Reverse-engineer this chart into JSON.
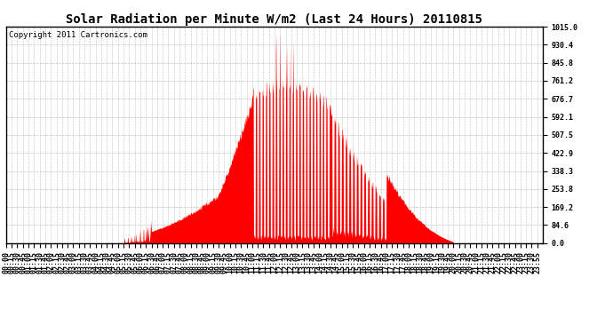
{
  "title": "Solar Radiation per Minute W/m2 (Last 24 Hours) 20110815",
  "copyright_text": "Copyright 2011 Cartronics.com",
  "yticks": [
    0.0,
    84.6,
    169.2,
    253.8,
    338.3,
    422.9,
    507.5,
    592.1,
    676.7,
    761.2,
    845.8,
    930.4,
    1015.0
  ],
  "ymax": 1015.0,
  "ymin": 0.0,
  "background_color": "#ffffff",
  "fill_color": "#ff0000",
  "line_color": "#ff0000",
  "grid_color": "#bbbbbb",
  "dashed_line_color": "#ff0000",
  "title_fontsize": 10,
  "copyright_fontsize": 6.5,
  "tick_fontsize": 6,
  "total_minutes": 1440,
  "xtick_labels": [
    "00:00",
    "00:15",
    "00:30",
    "00:45",
    "01:00",
    "01:15",
    "01:30",
    "01:45",
    "02:00",
    "02:15",
    "02:30",
    "02:45",
    "03:00",
    "03:15",
    "03:30",
    "03:45",
    "04:00",
    "04:15",
    "04:30",
    "04:45",
    "05:00",
    "05:15",
    "05:30",
    "05:45",
    "06:00",
    "06:15",
    "06:30",
    "06:45",
    "07:00",
    "07:15",
    "07:30",
    "07:45",
    "08:00",
    "08:15",
    "08:30",
    "08:45",
    "09:00",
    "09:15",
    "09:30",
    "09:45",
    "10:00",
    "10:15",
    "10:30",
    "10:45",
    "11:00",
    "11:15",
    "11:30",
    "11:45",
    "12:00",
    "12:15",
    "12:30",
    "12:45",
    "13:00",
    "13:15",
    "13:30",
    "13:45",
    "14:00",
    "14:15",
    "14:30",
    "14:45",
    "15:00",
    "15:15",
    "15:30",
    "15:45",
    "16:00",
    "16:15",
    "16:30",
    "16:45",
    "17:00",
    "17:15",
    "17:30",
    "17:45",
    "18:00",
    "18:15",
    "18:30",
    "18:45",
    "19:00",
    "19:15",
    "19:30",
    "19:45",
    "20:00",
    "20:15",
    "20:30",
    "20:45",
    "21:00",
    "21:15",
    "21:30",
    "21:45",
    "22:00",
    "22:15",
    "22:30",
    "22:45",
    "23:00",
    "23:15",
    "23:30",
    "23:55"
  ]
}
